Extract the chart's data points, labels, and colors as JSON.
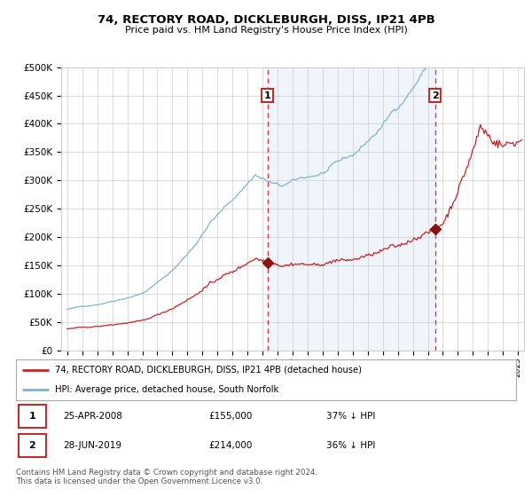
{
  "title1": "74, RECTORY ROAD, DICKLEBURGH, DISS, IP21 4PB",
  "title2": "Price paid vs. HM Land Registry's House Price Index (HPI)",
  "legend_line1": "74, RECTORY ROAD, DICKLEBURGH, DISS, IP21 4PB (detached house)",
  "legend_line2": "HPI: Average price, detached house, South Norfolk",
  "transaction1_date": "25-APR-2008",
  "transaction1_price": 155000,
  "transaction1_label": "37% ↓ HPI",
  "transaction2_date": "28-JUN-2019",
  "transaction2_price": 214000,
  "transaction2_label": "36% ↓ HPI",
  "footer": "Contains HM Land Registry data © Crown copyright and database right 2024.\nThis data is licensed under the Open Government Licence v3.0.",
  "hpi_color": "#7fb3d3",
  "price_color": "#cc2222",
  "marker_color": "#881111",
  "vline_color": "#ee3333",
  "plot_bg": "#ffffff",
  "ylim": [
    0,
    500000
  ],
  "yticks": [
    0,
    50000,
    100000,
    150000,
    200000,
    250000,
    300000,
    350000,
    400000,
    450000,
    500000
  ],
  "transaction1_x": 2008.32,
  "transaction2_x": 2019.49,
  "xlim_left": 1994.6,
  "xlim_right": 2025.4
}
